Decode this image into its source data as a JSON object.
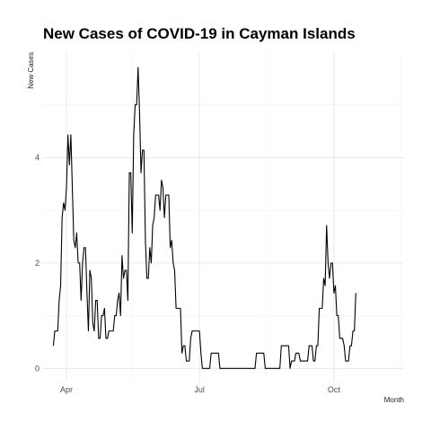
{
  "chart_data": {
    "type": "line",
    "title": "New Cases of COVID-19 in Cayman Islands",
    "xlabel": "Month",
    "ylabel": "New Cases",
    "x_ticks": [
      {
        "label": "Apr",
        "day": 9
      },
      {
        "label": "Jul",
        "day": 100
      },
      {
        "label": "Oct",
        "day": 192
      }
    ],
    "y_ticks": [
      0,
      2,
      4
    ],
    "x_range_days": [
      -7,
      240
    ],
    "ylim": [
      -0.25,
      6.0
    ],
    "grid": true,
    "line_color": "#000000",
    "start_date": "2020-03-25",
    "series": [
      {
        "values": [
          0.43,
          0.71,
          0.71,
          0.71,
          1.29,
          1.57,
          2.86,
          3.14,
          3.0,
          3.43,
          4.43,
          3.86,
          4.43,
          3.43,
          2.43,
          2.29,
          2.57,
          2.0,
          2.0,
          1.29,
          2.0,
          2.29,
          2.29,
          1.43,
          0.71,
          1.86,
          1.71,
          0.86,
          0.71,
          1.29,
          1.29,
          0.57,
          0.57,
          1.0,
          1.0,
          1.14,
          0.57,
          0.57,
          0.71,
          0.71,
          0.71,
          0.71,
          1.0,
          1.0,
          1.29,
          1.43,
          1.0,
          2.14,
          1.71,
          1.86,
          1.86,
          1.29,
          3.71,
          3.71,
          2.57,
          4.43,
          5.0,
          5.0,
          5.71,
          4.86,
          3.71,
          4.14,
          4.14,
          2.43,
          1.71,
          1.71,
          2.29,
          2.0,
          2.71,
          2.86,
          3.29,
          3.29,
          3.29,
          3.0,
          3.57,
          3.43,
          2.86,
          3.29,
          3.29,
          3.29,
          2.29,
          2.43,
          2.0,
          1.86,
          1.14,
          1.14,
          1.14,
          1.14,
          0.29,
          0.43,
          0.43,
          0.14,
          0.14,
          0.14,
          0.57,
          0.71,
          0.71,
          0.71,
          0.71,
          0.71,
          0.71,
          0.29,
          0.0,
          0.0,
          0.0,
          0.0,
          0.0,
          0.0,
          0.29,
          0.29,
          0.29,
          0.29,
          0.29,
          0.29,
          0.0,
          0.0,
          0.0,
          0.0,
          0.0,
          0.0,
          0.0,
          0.0,
          0.0,
          0.0,
          0.0,
          0.0,
          0.0,
          0.0,
          0.0,
          0.0,
          0.0,
          0.0,
          0.0,
          0.0,
          0.0,
          0.0,
          0.0,
          0.0,
          0.0,
          0.29,
          0.29,
          0.29,
          0.29,
          0.29,
          0.29,
          0.0,
          0.0,
          0.0,
          0.0,
          0.0,
          0.0,
          0.0,
          0.0,
          0.0,
          0.0,
          0.0,
          0.43,
          0.43,
          0.43,
          0.43,
          0.43,
          0.43,
          0.0,
          0.14,
          0.14,
          0.14,
          0.29,
          0.29,
          0.29,
          0.14,
          0.14,
          0.14,
          0.14,
          0.14,
          0.14,
          0.43,
          0.43,
          0.43,
          0.14,
          0.14,
          0.43,
          0.43,
          1.14,
          1.14,
          1.14,
          1.71,
          1.57,
          2.71,
          2.0,
          1.71,
          2.0,
          2.0,
          1.43,
          1.57,
          1.0,
          1.0,
          0.57,
          0.57,
          0.57,
          0.43,
          0.14,
          0.14,
          0.14,
          0.43,
          0.43,
          0.71,
          0.71,
          1.43
        ]
      }
    ]
  }
}
